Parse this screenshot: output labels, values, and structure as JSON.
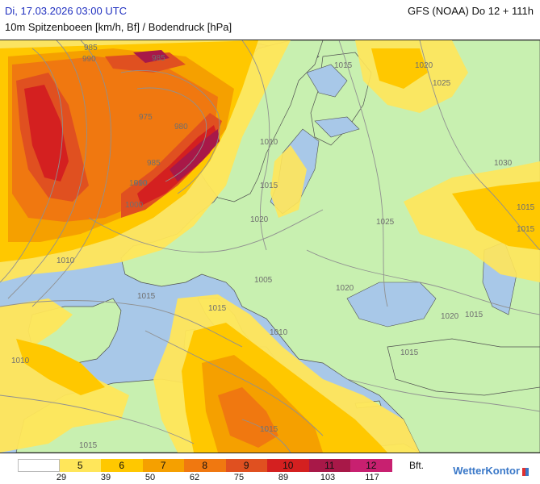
{
  "header": {
    "datetime": "Di, 17.03.2026 03:00 UTC",
    "model": "GFS (NOAA) Do 12 + 111h",
    "parameter": "10m Spitzenboeen [km/h, Bf] / Bodendruck [hPa]"
  },
  "isobar_labels": [
    "985",
    "990",
    "985",
    "975",
    "980",
    "985",
    "990",
    "1000",
    "1010",
    "1015",
    "1020",
    "1025",
    "1030",
    "1015",
    "1010",
    "1015",
    "1010",
    "1015",
    "1020",
    "1020",
    "1025",
    "1015",
    "1015",
    "1010",
    "1015",
    "1015",
    "1005",
    "1015",
    "1020",
    "1010",
    "1015"
  ],
  "legend": {
    "bft_values": [
      "",
      "5",
      "6",
      "7",
      "8",
      "9",
      "10",
      "11",
      "12"
    ],
    "colors": [
      "#ffffff",
      "#ffe65a",
      "#ffc800",
      "#f5a000",
      "#f07810",
      "#e05020",
      "#d42020",
      "#a81848",
      "#c82070"
    ],
    "unit": "Bft.",
    "kmh_values": [
      "29",
      "39",
      "50",
      "62",
      "75",
      "89",
      "103",
      "117"
    ]
  },
  "map_colors": {
    "sea": "#a8c8e8",
    "land_calm": "#c8f0b0",
    "isobar": "#909090",
    "border": "#505050"
  },
  "brand": "WetterKontor"
}
